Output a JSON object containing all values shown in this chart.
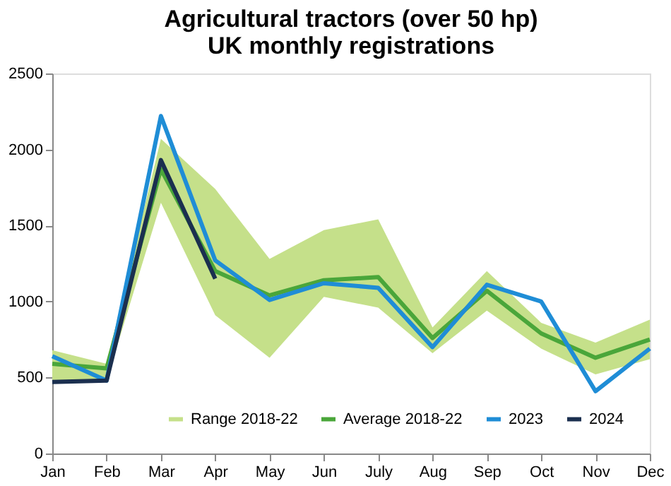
{
  "chart_data": {
    "type": "line",
    "title": [
      "Agricultural tractors (over 50 hp)",
      "UK monthly registrations"
    ],
    "categories": [
      "Jan",
      "Feb",
      "Mar",
      "Apr",
      "May",
      "Jun",
      "July",
      "Aug",
      "Sep",
      "Oct",
      "Nov",
      "Dec"
    ],
    "series": [
      {
        "name": "Range 2018-22",
        "type": "area",
        "color": "#c5e08a",
        "values": [
          null,
          null,
          null,
          null,
          null,
          null,
          null,
          null,
          null,
          null,
          null,
          null
        ],
        "lower": [
          470,
          480,
          1650,
          910,
          630,
          1030,
          960,
          660,
          940,
          690,
          520,
          620
        ],
        "upper": [
          680,
          590,
          2070,
          1740,
          1280,
          1470,
          1540,
          830,
          1200,
          860,
          730,
          880
        ]
      },
      {
        "name": "Average 2018-22",
        "color": "#4aa63a",
        "values": [
          590,
          560,
          1870,
          1200,
          1040,
          1140,
          1160,
          760,
          1070,
          790,
          630,
          750
        ]
      },
      {
        "name": "2023",
        "color": "#1f8dd6",
        "values": [
          640,
          480,
          2220,
          1270,
          1010,
          1120,
          1090,
          700,
          1110,
          1000,
          410,
          690
        ]
      },
      {
        "name": "2024",
        "color": "#1b2f4f",
        "values": [
          470,
          480,
          1930,
          1150,
          null,
          null,
          null,
          null,
          null,
          null,
          null,
          null
        ]
      }
    ],
    "ylim": [
      0,
      2500
    ],
    "yticks": [
      0,
      500,
      1000,
      1500,
      2000,
      2500
    ],
    "grid": false,
    "legend": "bottom",
    "line_style": "solid",
    "marker": "none"
  }
}
